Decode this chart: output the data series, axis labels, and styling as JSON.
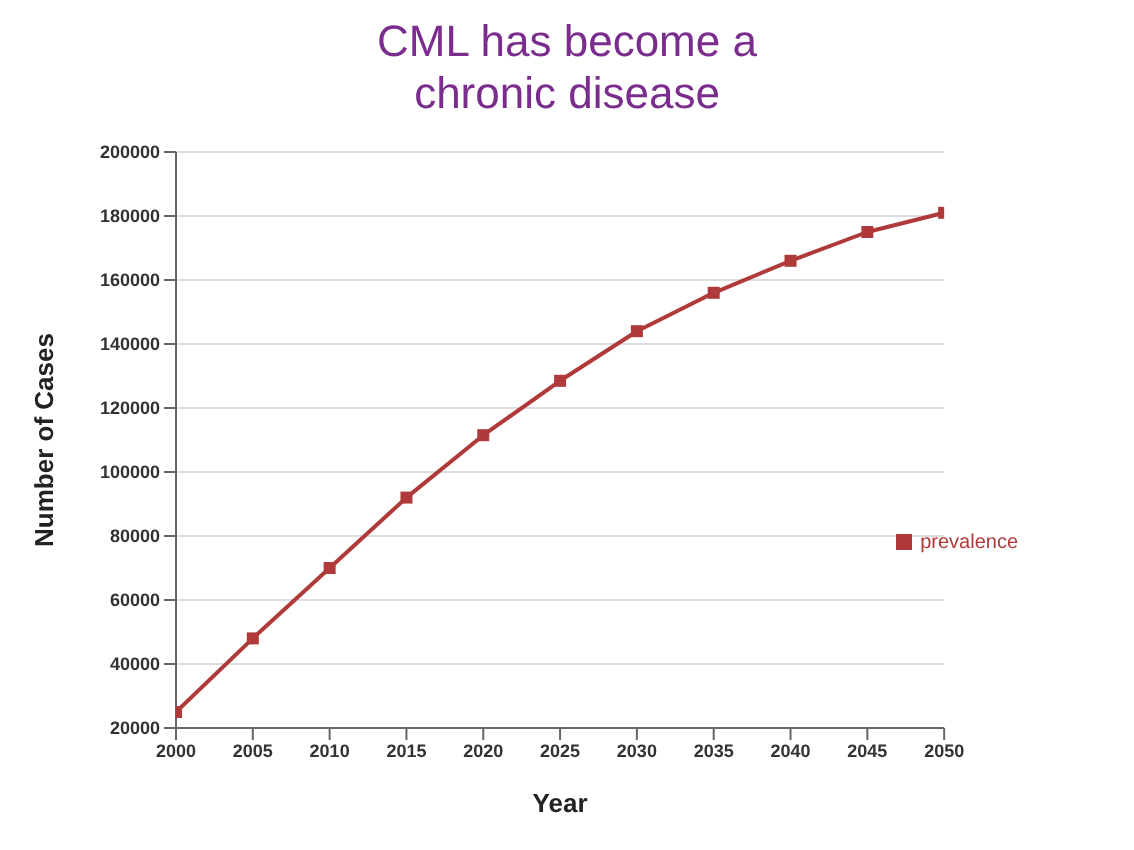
{
  "chart_data": {
    "type": "line",
    "title": "CML has become a\nchronic disease",
    "xlabel": "Year",
    "ylabel": "Number of Cases",
    "x": [
      2000,
      2005,
      2010,
      2015,
      2020,
      2025,
      2030,
      2035,
      2040,
      2045,
      2050
    ],
    "series": [
      {
        "name": "prevalence",
        "color": "#b03a3a",
        "values": [
          25000,
          48000,
          70000,
          92000,
          111500,
          128500,
          144000,
          156000,
          166000,
          175000,
          181000
        ]
      }
    ],
    "xlim": [
      2000,
      2050
    ],
    "xticks": [
      2000,
      2005,
      2010,
      2015,
      2020,
      2025,
      2030,
      2035,
      2040,
      2045,
      2050
    ],
    "ylim": [
      20000,
      200000
    ],
    "yticks": [
      20000,
      40000,
      60000,
      80000,
      100000,
      120000,
      140000,
      160000,
      180000,
      200000
    ],
    "grid": "y",
    "legend": "right",
    "marker": "square",
    "line_style": "solid"
  }
}
